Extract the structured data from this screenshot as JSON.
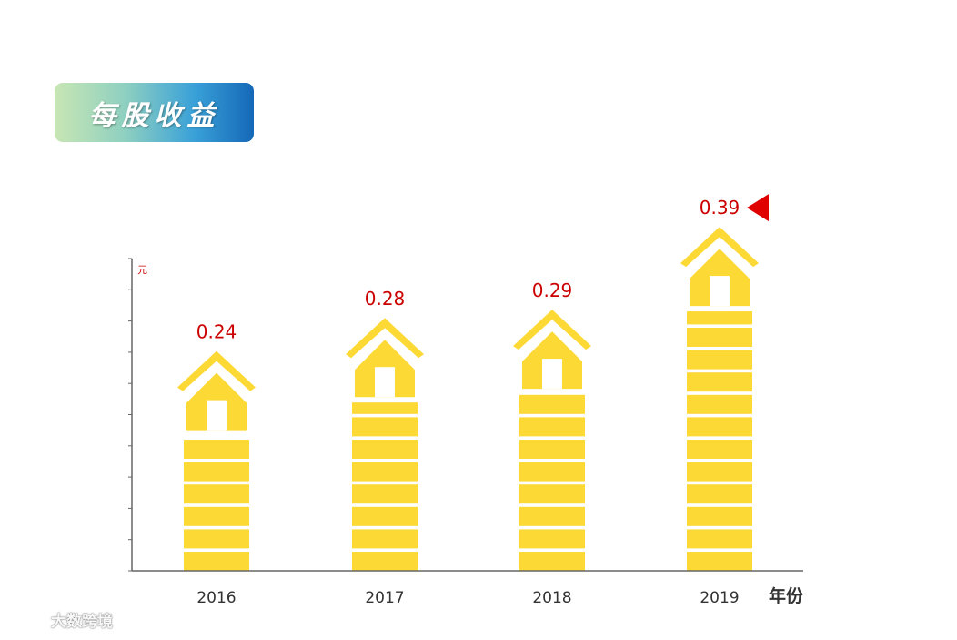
{
  "header": {
    "title": "每股收益"
  },
  "watermark": {
    "text": "大数跨境"
  },
  "colors": {
    "bar": "#fcd935",
    "value": "#cc0000",
    "arrow": "#e00000",
    "axis": "#666666"
  },
  "chart_data": {
    "type": "bar",
    "title": "每股收益",
    "categories": [
      "2016",
      "2017",
      "2018",
      "2019"
    ],
    "values": [
      0.24,
      0.28,
      0.29,
      0.39
    ],
    "value_labels": [
      "0.24",
      "0.28",
      "0.29",
      "0.39"
    ],
    "ylabel": "元",
    "xlabel": "年份",
    "ylim": [
      0,
      0.4
    ],
    "highlight": "2019",
    "grid": false
  }
}
